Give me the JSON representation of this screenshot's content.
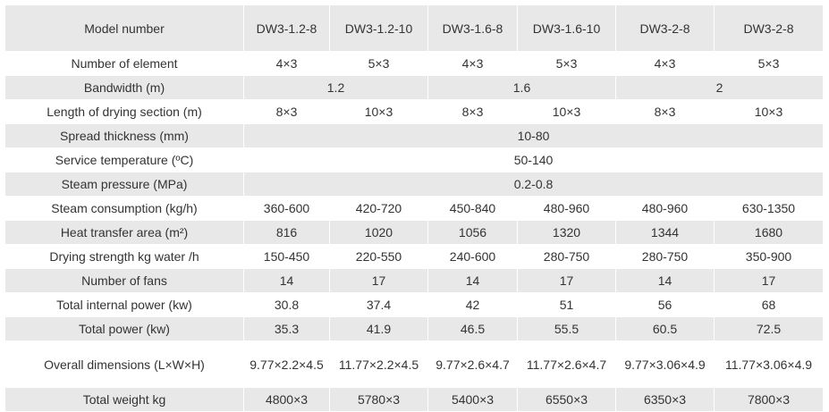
{
  "table": {
    "header": [
      "Model number",
      "DW3-1.2-8",
      "DW3-1.2-10",
      "DW3-1.6-8",
      "DW3-1.6-10",
      "DW3-2-8",
      "DW3-2-8"
    ],
    "rows": [
      [
        "Number of element",
        "4×3",
        "5×3",
        "4×3",
        "5×3",
        "4×3",
        "5×3"
      ],
      [
        "Bandwidth (m)",
        "1.2",
        "1.6",
        "2"
      ],
      [
        "Length of drying section (m)",
        "8×3",
        "10×3",
        "8×3",
        "10×3",
        "8×3",
        "10×3"
      ],
      [
        "Spread thickness (mm)",
        "10-80"
      ],
      [
        "Service temperature (ºC)",
        "50-140"
      ],
      [
        "Steam pressure (MPa)",
        "0.2-0.8"
      ],
      [
        "Steam consumption (kg/h)",
        "360-600",
        "420-720",
        "450-840",
        "480-960",
        "480-960",
        "630-1350"
      ],
      [
        "Heat transfer area (m²)",
        "816",
        "1020",
        "1056",
        "1320",
        "1344",
        "1680"
      ],
      [
        "Drying strength kg water /h",
        "150-450",
        "220-550",
        "240-600",
        "280-750",
        "280-750",
        "350-900"
      ],
      [
        "Number of fans",
        "14",
        "17",
        "14",
        "17",
        "14",
        "17"
      ],
      [
        "Total internal power (kw)",
        "30.8",
        "37.4",
        "42",
        "51",
        "56",
        "68"
      ],
      [
        "Total power (kw)",
        "35.3",
        "41.9",
        "46.5",
        "55.5",
        "60.5",
        "72.5"
      ],
      [
        "Overall dimensions (L×W×H)",
        "9.77×2.2×4.5",
        "11.77×2.2×4.5",
        "9.77×2.6×4.7",
        "11.77×2.6×4.7",
        "9.77×3.06×4.9",
        "11.77×3.06×4.9"
      ],
      [
        "Total weight kg",
        "4800×3",
        "5780×3",
        "5400×3",
        "6550×3",
        "6350×3",
        "7800×3"
      ]
    ]
  }
}
